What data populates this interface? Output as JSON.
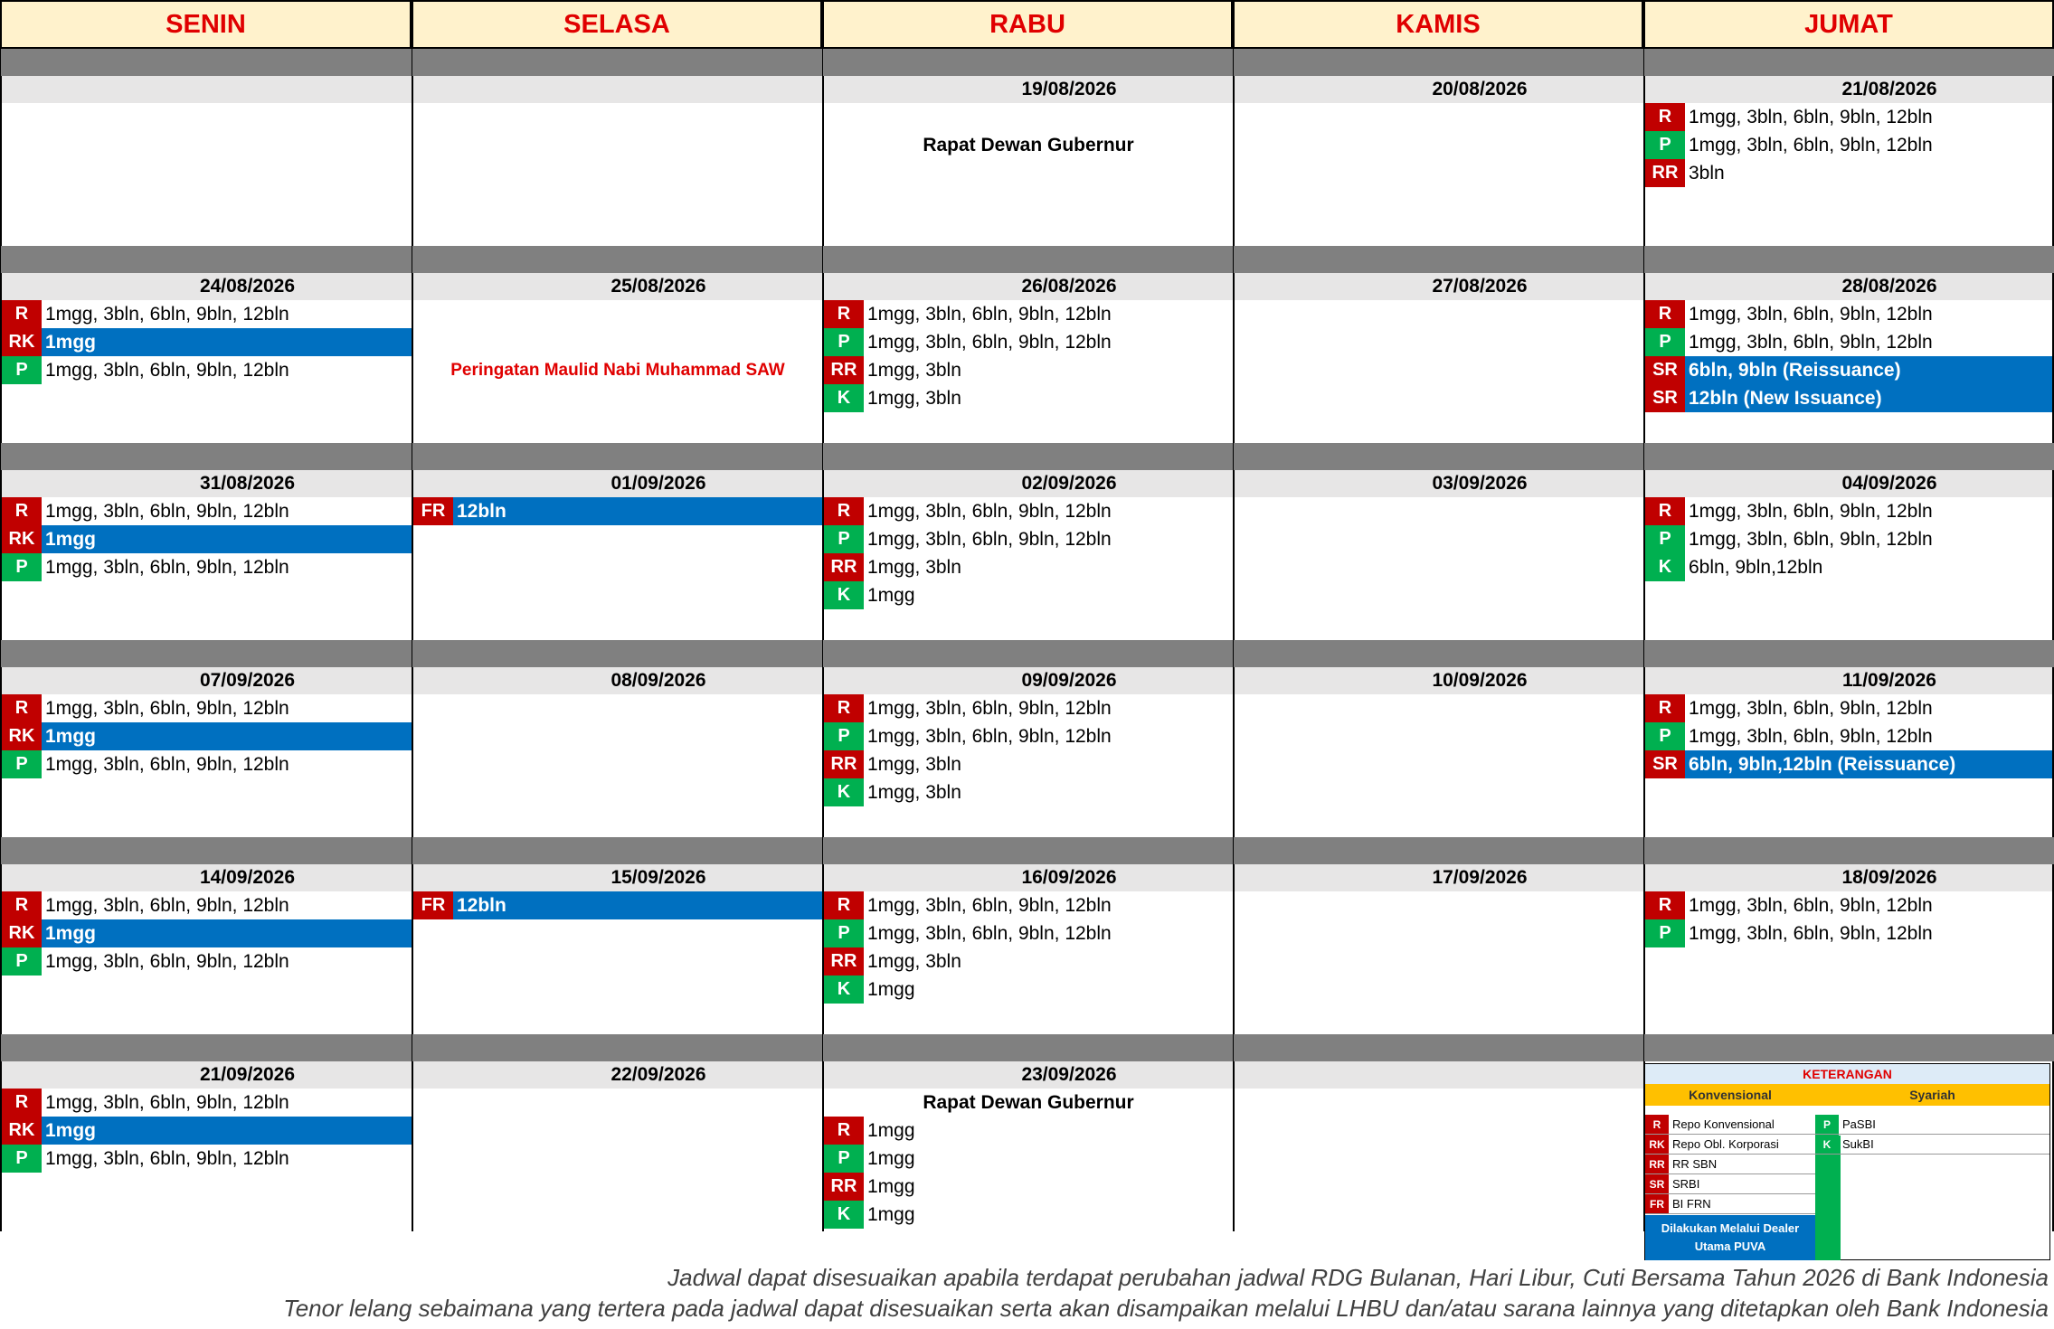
{
  "days": [
    "SENIN",
    "SELASA",
    "RABU",
    "KAMIS",
    "JUMAT"
  ],
  "weeks": [
    [
      {
        "date": "",
        "notes": [],
        "lines": []
      },
      {
        "date": "",
        "notes": [],
        "lines": []
      },
      {
        "date": "19/08/2026",
        "notes": [
          {
            "text": "Rapat Dewan Gubernur",
            "slot": 1,
            "red": false
          }
        ],
        "lines": []
      },
      {
        "date": "20/08/2026",
        "notes": [],
        "lines": []
      },
      {
        "date": "21/08/2026",
        "notes": [],
        "lines": [
          {
            "code": "R",
            "text": "1mgg, 3bln, 6bln, 9bln, 12bln",
            "color": "red",
            "blue": false
          },
          {
            "code": "P",
            "text": "1mgg, 3bln, 6bln, 9bln, 12bln",
            "color": "green",
            "blue": false
          },
          {
            "code": "RR",
            "text": "3bln",
            "color": "red",
            "blue": false
          }
        ]
      }
    ],
    [
      {
        "date": "24/08/2026",
        "notes": [],
        "lines": [
          {
            "code": "R",
            "text": "1mgg, 3bln, 6bln, 9bln, 12bln",
            "color": "red",
            "blue": false
          },
          {
            "code": "RK",
            "text": "1mgg",
            "color": "red",
            "blue": true
          },
          {
            "code": "P",
            "text": "1mgg, 3bln, 6bln, 9bln, 12bln",
            "color": "green",
            "blue": false
          }
        ]
      },
      {
        "date": "25/08/2026",
        "notes": [
          {
            "text": "Peringatan Maulid Nabi Muhammad SAW",
            "slot": 2,
            "red": true
          }
        ],
        "lines": []
      },
      {
        "date": "26/08/2026",
        "notes": [],
        "lines": [
          {
            "code": "R",
            "text": "1mgg, 3bln, 6bln, 9bln, 12bln",
            "color": "red",
            "blue": false
          },
          {
            "code": "P",
            "text": "1mgg, 3bln, 6bln, 9bln, 12bln",
            "color": "green",
            "blue": false
          },
          {
            "code": "RR",
            "text": "1mgg, 3bln",
            "color": "red",
            "blue": false
          },
          {
            "code": "K",
            "text": "1mgg, 3bln",
            "color": "green",
            "blue": false
          }
        ]
      },
      {
        "date": "27/08/2026",
        "notes": [],
        "lines": []
      },
      {
        "date": "28/08/2026",
        "notes": [],
        "lines": [
          {
            "code": "R",
            "text": "1mgg, 3bln, 6bln, 9bln, 12bln",
            "color": "red",
            "blue": false
          },
          {
            "code": "P",
            "text": "1mgg, 3bln, 6bln, 9bln, 12bln",
            "color": "green",
            "blue": false
          },
          {
            "code": "SR",
            "text": "6bln, 9bln (Reissuance)",
            "color": "red",
            "blue": true
          },
          {
            "code": "SR",
            "text": "12bln (New Issuance)",
            "color": "red",
            "blue": true
          }
        ]
      }
    ],
    [
      {
        "date": "31/08/2026",
        "notes": [],
        "lines": [
          {
            "code": "R",
            "text": "1mgg, 3bln, 6bln, 9bln, 12bln",
            "color": "red",
            "blue": false
          },
          {
            "code": "RK",
            "text": "1mgg",
            "color": "red",
            "blue": true
          },
          {
            "code": "P",
            "text": "1mgg, 3bln, 6bln, 9bln, 12bln",
            "color": "green",
            "blue": false
          }
        ]
      },
      {
        "date": "01/09/2026",
        "notes": [],
        "lines": [
          {
            "code": "FR",
            "text": "12bln",
            "color": "red",
            "blue": true
          }
        ]
      },
      {
        "date": "02/09/2026",
        "notes": [],
        "lines": [
          {
            "code": "R",
            "text": "1mgg, 3bln, 6bln, 9bln, 12bln",
            "color": "red",
            "blue": false
          },
          {
            "code": "P",
            "text": "1mgg, 3bln, 6bln, 9bln, 12bln",
            "color": "green",
            "blue": false
          },
          {
            "code": "RR",
            "text": "1mgg, 3bln",
            "color": "red",
            "blue": false
          },
          {
            "code": "K",
            "text": "1mgg",
            "color": "green",
            "blue": false
          }
        ]
      },
      {
        "date": "03/09/2026",
        "notes": [],
        "lines": []
      },
      {
        "date": "04/09/2026",
        "notes": [],
        "lines": [
          {
            "code": "R",
            "text": "1mgg, 3bln, 6bln, 9bln, 12bln",
            "color": "red",
            "blue": false
          },
          {
            "code": "P",
            "text": "1mgg, 3bln, 6bln, 9bln, 12bln",
            "color": "green",
            "blue": false
          },
          {
            "code": "K",
            "text": "6bln, 9bln,12bln",
            "color": "green",
            "blue": false
          }
        ]
      }
    ],
    [
      {
        "date": "07/09/2026",
        "notes": [],
        "lines": [
          {
            "code": "R",
            "text": "1mgg, 3bln, 6bln, 9bln, 12bln",
            "color": "red",
            "blue": false
          },
          {
            "code": "RK",
            "text": "1mgg",
            "color": "red",
            "blue": true
          },
          {
            "code": "P",
            "text": "1mgg, 3bln, 6bln, 9bln, 12bln",
            "color": "green",
            "blue": false
          }
        ]
      },
      {
        "date": "08/09/2026",
        "notes": [],
        "lines": []
      },
      {
        "date": "09/09/2026",
        "notes": [],
        "lines": [
          {
            "code": "R",
            "text": "1mgg, 3bln, 6bln, 9bln, 12bln",
            "color": "red",
            "blue": false
          },
          {
            "code": "P",
            "text": "1mgg, 3bln, 6bln, 9bln, 12bln",
            "color": "green",
            "blue": false
          },
          {
            "code": "RR",
            "text": "1mgg, 3bln",
            "color": "red",
            "blue": false
          },
          {
            "code": "K",
            "text": "1mgg, 3bln",
            "color": "green",
            "blue": false
          }
        ]
      },
      {
        "date": "10/09/2026",
        "notes": [],
        "lines": []
      },
      {
        "date": "11/09/2026",
        "notes": [],
        "lines": [
          {
            "code": "R",
            "text": "1mgg, 3bln, 6bln, 9bln, 12bln",
            "color": "red",
            "blue": false
          },
          {
            "code": "P",
            "text": "1mgg, 3bln, 6bln, 9bln, 12bln",
            "color": "green",
            "blue": false
          },
          {
            "code": "SR",
            "text": "6bln, 9bln,12bln (Reissuance)",
            "color": "red",
            "blue": true
          }
        ]
      }
    ],
    [
      {
        "date": "14/09/2026",
        "notes": [],
        "lines": [
          {
            "code": "R",
            "text": "1mgg, 3bln, 6bln, 9bln, 12bln",
            "color": "red",
            "blue": false
          },
          {
            "code": "RK",
            "text": "1mgg",
            "color": "red",
            "blue": true
          },
          {
            "code": "P",
            "text": "1mgg, 3bln, 6bln, 9bln, 12bln",
            "color": "green",
            "blue": false
          }
        ]
      },
      {
        "date": "15/09/2026",
        "notes": [],
        "lines": [
          {
            "code": "FR",
            "text": "12bln",
            "color": "red",
            "blue": true
          }
        ]
      },
      {
        "date": "16/09/2026",
        "notes": [],
        "lines": [
          {
            "code": "R",
            "text": "1mgg, 3bln, 6bln, 9bln, 12bln",
            "color": "red",
            "blue": false
          },
          {
            "code": "P",
            "text": "1mgg, 3bln, 6bln, 9bln, 12bln",
            "color": "green",
            "blue": false
          },
          {
            "code": "RR",
            "text": "1mgg, 3bln",
            "color": "red",
            "blue": false
          },
          {
            "code": "K",
            "text": "1mgg",
            "color": "green",
            "blue": false
          }
        ]
      },
      {
        "date": "17/09/2026",
        "notes": [],
        "lines": []
      },
      {
        "date": "18/09/2026",
        "notes": [],
        "lines": [
          {
            "code": "R",
            "text": "1mgg, 3bln, 6bln, 9bln, 12bln",
            "color": "red",
            "blue": false
          },
          {
            "code": "P",
            "text": "1mgg, 3bln, 6bln, 9bln, 12bln",
            "color": "green",
            "blue": false
          }
        ]
      }
    ],
    [
      {
        "date": "21/09/2026",
        "notes": [],
        "lines": [
          {
            "code": "R",
            "text": "1mgg, 3bln, 6bln, 9bln, 12bln",
            "color": "red",
            "blue": false
          },
          {
            "code": "RK",
            "text": "1mgg",
            "color": "red",
            "blue": true
          },
          {
            "code": "P",
            "text": "1mgg, 3bln, 6bln, 9bln, 12bln",
            "color": "green",
            "blue": false
          }
        ]
      },
      {
        "date": "22/09/2026",
        "notes": [],
        "lines": []
      },
      {
        "date": "23/09/2026",
        "notes": [
          {
            "text": "Rapat Dewan Gubernur",
            "slot": 0,
            "red": false
          }
        ],
        "lines": [
          {
            "code": "R",
            "text": "1mgg",
            "color": "red",
            "blue": false,
            "slot": 1
          },
          {
            "code": "P",
            "text": "1mgg",
            "color": "green",
            "blue": false,
            "slot": 2
          },
          {
            "code": "RR",
            "text": "1mgg",
            "color": "red",
            "blue": false,
            "slot": 3
          },
          {
            "code": "K",
            "text": "1mgg",
            "color": "green",
            "blue": false,
            "slot": 4
          }
        ]
      },
      {
        "date": "",
        "notes": [],
        "lines": []
      },
      {
        "date": "",
        "notes": [],
        "lines": [],
        "legend": true
      }
    ]
  ],
  "legend": {
    "title": "KETERANGAN",
    "konvensional_label": "Konvensional",
    "syariah_label": "Syariah",
    "konvensional": [
      {
        "code": "R",
        "label": "Repo Konvensional",
        "color": "red"
      },
      {
        "code": "RK",
        "label": "Repo Obl. Korporasi",
        "color": "red"
      },
      {
        "code": "RR",
        "label": "RR SBN",
        "color": "red"
      },
      {
        "code": "SR",
        "label": "SRBI",
        "color": "red"
      },
      {
        "code": "FR",
        "label": "BI FRN",
        "color": "red"
      }
    ],
    "syariah": [
      {
        "code": "P",
        "label": "PaSBI",
        "color": "green"
      },
      {
        "code": "K",
        "label": "SukBI",
        "color": "green"
      }
    ],
    "dealer_note": "Dilakukan Melalui Dealer Utama PUVA"
  },
  "footer": [
    "Jadwal dapat disesuaikan apabila terdapat perubahan jadwal RDG Bulanan, Hari Libur, Cuti Bersama Tahun 2026 di Bank Indonesia",
    "Tenor lelang sebaimana yang tertera pada jadwal dapat disesuaikan serta akan disampaikan melalui LHBU dan/atau sarana lainnya yang ditetapkan oleh Bank Indonesia"
  ],
  "colors": {
    "red": "#C00000",
    "green": "#00B050",
    "blue": "#0070C0",
    "header_bg": "#FFF2CC",
    "header_text": "#E00000"
  }
}
